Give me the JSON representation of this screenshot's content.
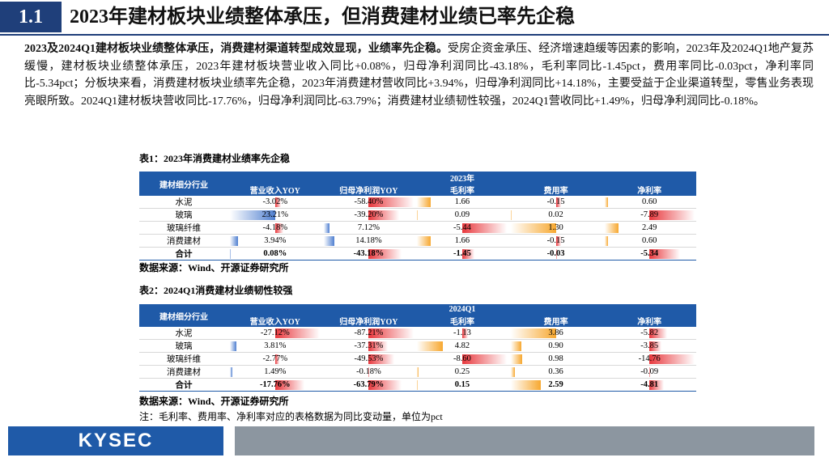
{
  "header": {
    "number": "1.1",
    "title": "2023年建材板块业绩整体承压，但消费建材业绩已率先企稳"
  },
  "paragraph": {
    "bold": "2023及2024Q1建材板块业绩整体承压，消费建材渠道转型成效显现，业绩率先企稳。",
    "text": "受房企资金承压、经济增速趋缓等因素的影响，2023年及2024Q1地产复苏缓慢，建材板块业绩整体承压，2023年建材板块营业收入同比+0.08%，归母净利润同比-43.18%，毛利率同比-1.45pct，费用率同比-0.03pct，净利率同比-5.34pct；分板块来看，消费建材板块业绩率先企稳，2023年消费建材营收同比+3.94%，归母净利润同比+14.18%，主要受益于企业渠道转型，零售业务表现亮眼所致。2024Q1建材板块营收同比-17.76%，归母净利润同比-63.79%；消费建材业绩韧性较强，2024Q1营收同比+1.49%，归母净利润同比-0.18%。"
  },
  "tables": [
    {
      "caption": "表1：2023年消费建材业绩率先企稳",
      "corner": "建材细分行业",
      "group": "2023年",
      "columns": [
        "营业收入YOY",
        "归母净利润YOY",
        "毛利率",
        "费用率",
        "净利率"
      ],
      "rows": [
        [
          "水泥",
          "-3.02%",
          "-58.40%",
          "1.66",
          "-0.15",
          "0.60"
        ],
        [
          "玻璃",
          "23.21%",
          "-39.20%",
          "0.09",
          "0.02",
          "-7.89"
        ],
        [
          "玻璃纤维",
          "-4.18%",
          "7.12%",
          "-5.44",
          "1.30",
          "2.49"
        ],
        [
          "消费建材",
          "3.94%",
          "14.18%",
          "1.66",
          "-0.15",
          "0.60"
        ],
        [
          "合计",
          "0.08%",
          "-43.18%",
          "-1.45",
          "-0.03",
          "-5.34"
        ]
      ],
      "source": "数据来源：Wind、开源证券研究所"
    },
    {
      "caption": "表2：2024Q1消费建材业绩韧性较强",
      "corner": "建材细分行业",
      "group": "2024Q1",
      "columns": [
        "营业收入YOY",
        "归母净利润YOY",
        "毛利率",
        "费用率",
        "净利率"
      ],
      "rows": [
        [
          "水泥",
          "-27.12%",
          "-87.21%",
          "-1.13",
          "3.86",
          "-5.82"
        ],
        [
          "玻璃",
          "3.81%",
          "-37.31%",
          "4.82",
          "0.90",
          "-3.85"
        ],
        [
          "玻璃纤维",
          "-2.77%",
          "-49.53%",
          "-8.60",
          "0.98",
          "-14.76"
        ],
        [
          "消费建材",
          "1.49%",
          "-0.18%",
          "0.25",
          "0.36",
          "-0.09"
        ],
        [
          "合计",
          "-17.76%",
          "-63.79%",
          "0.15",
          "2.59",
          "-4.81"
        ]
      ],
      "source": "数据来源：Wind、开源证券研究所"
    }
  ],
  "note": "注：毛利率、费用率、净利率对应的表格数据为同比变动量，单位为pct",
  "footer": {
    "logo": "KYSEC"
  }
}
